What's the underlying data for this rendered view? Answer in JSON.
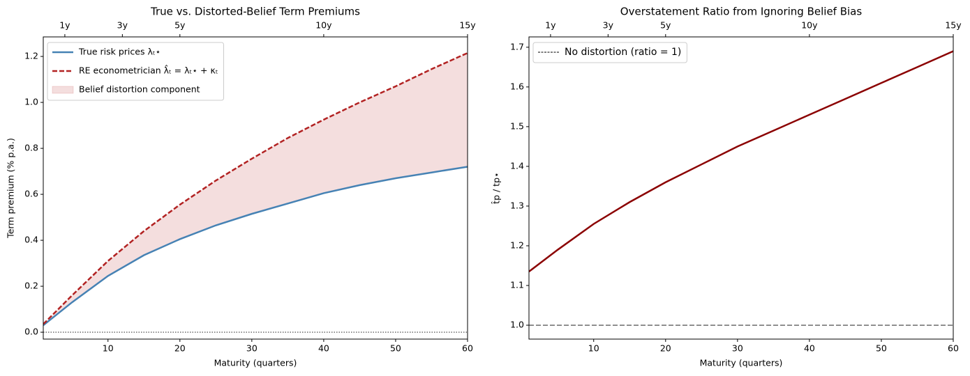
{
  "chart_data": [
    {
      "type": "line",
      "title": "True vs. Distorted-Belief Term Premiums",
      "x_label": "Maturity (quarters)",
      "y_label": "Term premium (% p.a.)",
      "x": [
        1,
        5,
        10,
        15,
        20,
        25,
        30,
        35,
        40,
        45,
        50,
        55,
        60
      ],
      "series": [
        {
          "name": "True risk prices λₜ⋆",
          "color": "#4682b4",
          "linestyle": "solid",
          "values": [
            0.03,
            0.13,
            0.245,
            0.335,
            0.405,
            0.465,
            0.515,
            0.56,
            0.605,
            0.64,
            0.67,
            0.695,
            0.72
          ]
        },
        {
          "name": "RE econometrician λ̂ₜ = λₜ⋆ + κₜ",
          "color": "#b22222",
          "linestyle": "dashed",
          "values": [
            0.035,
            0.16,
            0.31,
            0.44,
            0.555,
            0.66,
            0.755,
            0.845,
            0.925,
            1.0,
            1.07,
            1.145,
            1.215
          ]
        }
      ],
      "band": {
        "name": "Belief distortion component",
        "color": "#b22222",
        "opacity": 0.15
      },
      "reference_line": {
        "value": 0,
        "color": "#000000",
        "linestyle": "dotted"
      },
      "xlim": [
        1,
        60
      ],
      "xticks": [
        10,
        20,
        30,
        40,
        50,
        60
      ],
      "x2ticks": [
        {
          "value": 4,
          "label": "1y"
        },
        {
          "value": 12,
          "label": "3y"
        },
        {
          "value": 20,
          "label": "5y"
        },
        {
          "value": 40,
          "label": "10y"
        },
        {
          "value": 60,
          "label": "15y"
        }
      ],
      "ylim": [
        -0.03,
        1.285
      ],
      "yticks": [
        {
          "value": 0,
          "label": "0.0"
        },
        0.2,
        0.4,
        0.6,
        0.8,
        {
          "value": 1,
          "label": "1.0"
        },
        1.2
      ],
      "grid": false,
      "legend": "upper left"
    },
    {
      "type": "line",
      "title": "Overstatement Ratio from Ignoring Belief Bias",
      "x_label": "Maturity (quarters)",
      "y_label": "t̂p / tp⋆",
      "x": [
        1,
        5,
        10,
        15,
        20,
        25,
        30,
        35,
        40,
        45,
        50,
        55,
        60
      ],
      "series": [
        {
          "color": "#8b0000",
          "linestyle": "solid",
          "values": [
            1.135,
            1.19,
            1.255,
            1.31,
            1.36,
            1.405,
            1.45,
            1.49,
            1.53,
            1.57,
            1.61,
            1.65,
            1.69
          ]
        }
      ],
      "reference_line": {
        "name": "No distortion (ratio = 1)",
        "value": 1,
        "color": "#000000",
        "linestyle": "dashed"
      },
      "xlim": [
        1,
        60
      ],
      "xticks": [
        10,
        20,
        30,
        40,
        50,
        60
      ],
      "x2ticks": [
        {
          "value": 4,
          "label": "1y"
        },
        {
          "value": 12,
          "label": "3y"
        },
        {
          "value": 20,
          "label": "5y"
        },
        {
          "value": 40,
          "label": "10y"
        },
        {
          "value": 60,
          "label": "15y"
        }
      ],
      "ylim": [
        0.965,
        1.726
      ],
      "yticks": [
        {
          "value": 1,
          "label": "1.0"
        },
        1.1,
        1.2,
        1.3,
        1.4,
        1.5,
        1.6,
        1.7
      ],
      "grid": false,
      "legend": "upper left"
    }
  ]
}
